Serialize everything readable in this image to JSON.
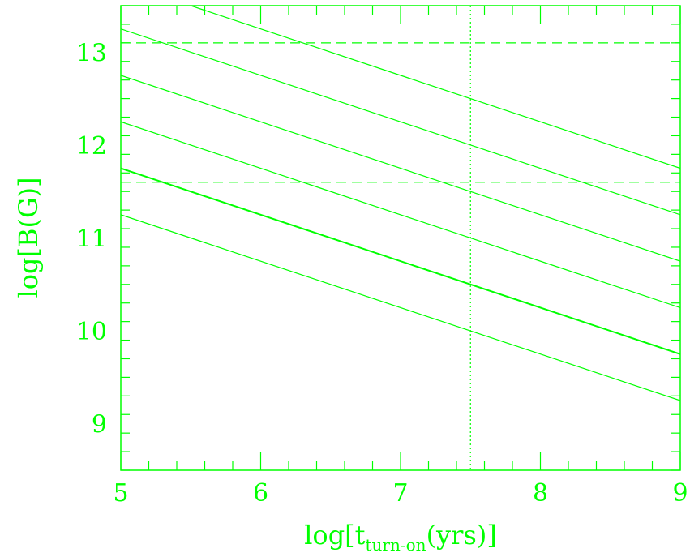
{
  "chart_data": {
    "type": "line",
    "xlabel": {
      "pre": "log[t",
      "sub": "turn-on",
      "post": "(yrs)]"
    },
    "ylabel": "log[B(G)]",
    "xlim": [
      5,
      9
    ],
    "ylim": [
      8.5,
      13.5
    ],
    "x_ticks": [
      5,
      6,
      7,
      8,
      9
    ],
    "y_ticks": [
      9,
      10,
      11,
      12,
      13
    ],
    "grid": false,
    "series": [
      {
        "x": [
          5,
          9
        ],
        "y": [
          11.25,
          9.25
        ]
      },
      {
        "x": [
          5,
          9
        ],
        "y": [
          11.75,
          9.75
        ],
        "emphasis": true
      },
      {
        "x": [
          5,
          9
        ],
        "y": [
          12.25,
          10.25
        ]
      },
      {
        "x": [
          5,
          9
        ],
        "y": [
          12.75,
          10.75
        ]
      },
      {
        "x": [
          5,
          9
        ],
        "y": [
          13.25,
          11.25
        ]
      },
      {
        "x": [
          5,
          9
        ],
        "y": [
          13.75,
          11.75
        ]
      }
    ],
    "reference_lines": [
      {
        "orientation": "horizontal",
        "value": 13.1,
        "style": "dashed"
      },
      {
        "orientation": "horizontal",
        "value": 11.6,
        "style": "dashed"
      },
      {
        "orientation": "vertical",
        "value": 7.5,
        "style": "dotted"
      }
    ],
    "color": "#00ff00"
  }
}
